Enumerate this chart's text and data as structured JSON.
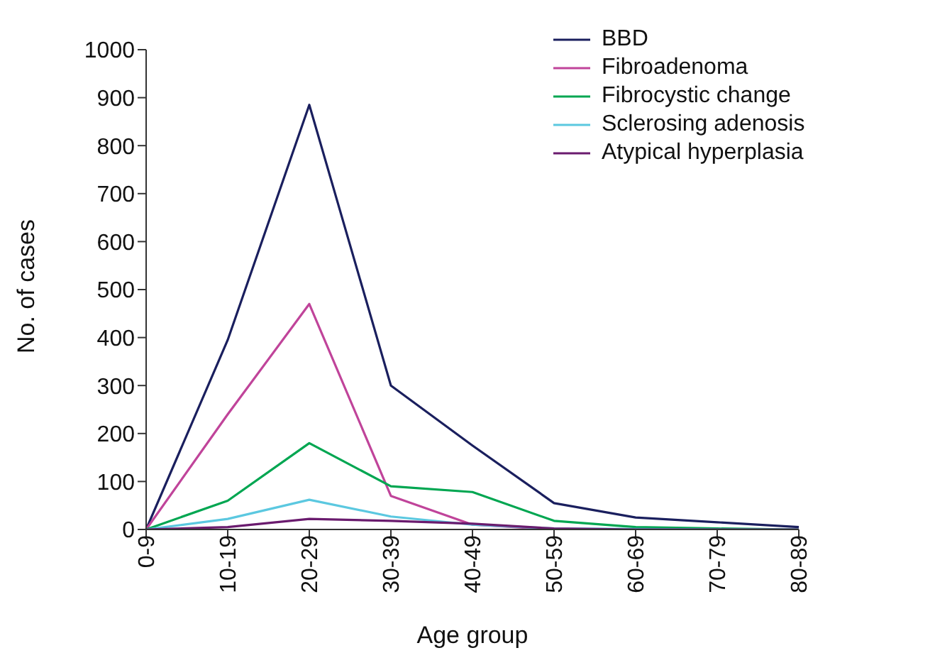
{
  "chart_data": {
    "type": "line",
    "xlabel": "Age group",
    "ylabel": "No. of cases",
    "categories": [
      "0-9",
      "10-19",
      "20-29",
      "30-39",
      "40-49",
      "50-59",
      "60-69",
      "70-79",
      "80-89"
    ],
    "series": [
      {
        "name": "BBD",
        "color": "#1a1f5e",
        "values": [
          0,
          395,
          885,
          300,
          175,
          55,
          25,
          15,
          5
        ]
      },
      {
        "name": "Fibroadenoma",
        "color": "#c0449a",
        "values": [
          0,
          240,
          470,
          70,
          10,
          0,
          0,
          null,
          null
        ]
      },
      {
        "name": "Fibrocystic change",
        "color": "#00a651",
        "values": [
          0,
          60,
          180,
          90,
          78,
          18,
          5,
          2,
          0
        ]
      },
      {
        "name": "Sclerosing adenosis",
        "color": "#5bc8e0",
        "values": [
          0,
          22,
          62,
          27,
          10,
          2,
          1,
          0,
          0
        ]
      },
      {
        "name": "Atypical hyperplasia",
        "color": "#6a1b6e",
        "values": [
          0,
          5,
          22,
          18,
          12,
          2,
          0,
          0,
          0
        ]
      }
    ],
    "ylim": [
      0,
      1000
    ],
    "yticks": [
      0,
      100,
      200,
      300,
      400,
      500,
      600,
      700,
      800,
      900,
      1000
    ],
    "grid": false,
    "legend": "top right",
    "marker": "none",
    "line_style": "solid"
  }
}
